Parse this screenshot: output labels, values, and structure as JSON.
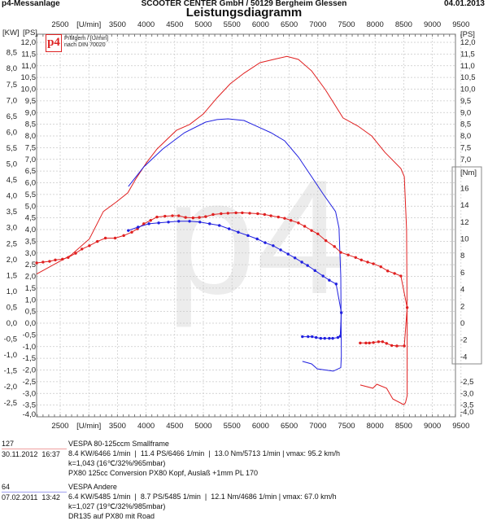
{
  "header": {
    "left": "p4-Messanlage",
    "center": "SCOOTER CENTER GmbH / 50129 Bergheim Glessen",
    "date": "04.01.2013",
    "title": "Leistungsdiagramm"
  },
  "logo": {
    "mark": "p4",
    "line1": "P/Mgem / [U/min]",
    "line2": "nach DIN 70020",
    "watermark": "p4"
  },
  "colors": {
    "run1": "#e02020",
    "run2": "#2020e0",
    "grid": "#c8c8c8"
  },
  "chart_data": {
    "type": "line",
    "xlabel": "[U/min]",
    "xlim": [
      2100,
      9500
    ],
    "x_ticks": [
      "2500",
      "[U/min]",
      "3500",
      "4000",
      "4500",
      "5000",
      "5500",
      "6000",
      "6500",
      "7000",
      "7500",
      "8000",
      "8500",
      "9000",
      "9500"
    ],
    "y_left_units": [
      "[KW]",
      "[PS]"
    ],
    "y_right_units": [
      "[PS]",
      "[Nm]"
    ],
    "ps_ticks": [
      "12,0",
      "11,5",
      "11,0",
      "10,5",
      "10,0",
      "9,5",
      "9,0",
      "8,5",
      "8,0",
      "7,5",
      "7,0",
      "6,5",
      "6,0",
      "5,5",
      "5,0",
      "4,5",
      "4,0",
      "3,5",
      "3,0",
      "2,5",
      "2,0",
      "1,5",
      "1,0",
      "0,5",
      "0,0",
      "-0,5",
      "-1,0",
      "-1,5",
      "-2,0",
      "-2,5",
      "-3,0",
      "-3,5",
      "-4,0"
    ],
    "kw_ticks": [
      "8,5",
      "8,0",
      "7,5",
      "7,0",
      "6,5",
      "6,0",
      "5,5",
      "5,0",
      "4,5",
      "4,0",
      "3,5",
      "3,0",
      "2,5",
      "2,0",
      "1,5",
      "1,0",
      "0,5",
      "0,0",
      "-0,5",
      "-1,0",
      "-1,5",
      "-2,0",
      "-2,5"
    ],
    "right_ps_upper_ticks": [
      "12,0",
      "11,5",
      "11,0",
      "10,5",
      "10,0",
      "9,5",
      "9,0",
      "8,5",
      "8,0",
      "7,5",
      "7,0"
    ],
    "right_nm_ticks": [
      "16",
      "14",
      "12",
      "10",
      "8",
      "6",
      "4",
      "2",
      "0",
      "-2",
      "-4"
    ],
    "right_ps_lower_ticks": [
      "-2,5",
      "-3,0",
      "-3,5",
      "-4,0"
    ],
    "ylim_ps": [
      -4.0,
      12.0
    ],
    "ylim_nm": [
      -4,
      16
    ],
    "grid": true,
    "series": [
      {
        "run": "127",
        "quantity": "PS",
        "color": "#e02020",
        "markers": false,
        "x": [
          2090,
          2685,
          3010,
          3253,
          3480,
          3680,
          3820,
          4006,
          4190,
          4530,
          4760,
          5000,
          5240,
          5470,
          5710,
          5990,
          6280,
          6460,
          6660,
          6890,
          7130,
          7440,
          7700,
          7940,
          8170,
          8450,
          8510,
          8550,
          8560,
          8560,
          8530,
          8500,
          8310,
          8200,
          8030,
          7960,
          7740
        ],
        "y": [
          2.1,
          2.9,
          3.6,
          4.77,
          5.18,
          5.57,
          6.16,
          6.85,
          7.44,
          8.24,
          8.49,
          8.94,
          9.63,
          10.23,
          10.68,
          11.13,
          11.3,
          11.4,
          11.27,
          10.78,
          9.98,
          8.77,
          8.42,
          8.0,
          7.3,
          6.61,
          6.26,
          4.0,
          0.0,
          -3.1,
          -3.4,
          -3.48,
          -3.24,
          -2.78,
          -2.61,
          -2.78,
          -2.64
        ]
      },
      {
        "run": "64",
        "quantity": "PS",
        "color": "#2020e0",
        "markers": false,
        "x": [
          3690,
          3960,
          4290,
          4670,
          5040,
          5240,
          5430,
          5710,
          5990,
          6180,
          6420,
          6660,
          6890,
          7090,
          7310,
          7370,
          7400,
          7410,
          7400,
          7270,
          6990,
          6890,
          6730
        ],
        "y": [
          5.84,
          6.68,
          7.44,
          8.14,
          8.59,
          8.7,
          8.73,
          8.66,
          8.35,
          8.14,
          7.79,
          7.1,
          6.26,
          5.53,
          4.77,
          4.07,
          2.0,
          -1.4,
          -1.9,
          -2.05,
          -1.95,
          -1.74,
          -1.63
        ]
      },
      {
        "run": "127",
        "quantity": "Nm",
        "color": "#e02020",
        "markers": true,
        "x": [
          2090,
          2200,
          2315,
          2415,
          2540,
          2640,
          2770,
          2880,
          3010,
          3150,
          3290,
          3460,
          3610,
          3750,
          3850,
          3960,
          4080,
          4190,
          4330,
          4460,
          4570,
          4690,
          4820,
          4930,
          5040,
          5170,
          5310,
          5430,
          5570,
          5680,
          5810,
          5950,
          6070,
          6180,
          6310,
          6420,
          6530,
          6660,
          6770,
          6890,
          7000,
          7140,
          7290,
          7400,
          7530,
          7660,
          7760,
          7870,
          7970,
          8100,
          8220,
          8340,
          8450,
          8560,
          8510,
          8380,
          8290,
          8200,
          8130,
          8060,
          7970,
          7900,
          7840,
          7740
        ],
        "y": [
          7.15,
          7.25,
          7.34,
          7.5,
          7.6,
          7.8,
          8.3,
          8.8,
          9.2,
          9.7,
          10.1,
          10.1,
          10.4,
          10.8,
          11.2,
          11.8,
          12.2,
          12.6,
          12.7,
          12.75,
          12.75,
          12.55,
          12.5,
          12.55,
          12.65,
          12.9,
          13.0,
          13.05,
          13.1,
          13.1,
          13.05,
          13.0,
          12.9,
          12.75,
          12.6,
          12.45,
          12.2,
          11.9,
          11.5,
          11.0,
          10.6,
          9.8,
          9.1,
          8.4,
          8.1,
          7.8,
          7.5,
          7.25,
          7.05,
          6.7,
          6.2,
          5.9,
          5.6,
          1.85,
          -2.7,
          -2.7,
          -2.65,
          -2.4,
          -2.2,
          -2.2,
          -2.3,
          -2.35,
          -2.35,
          -2.35
        ]
      },
      {
        "run": "64",
        "quantity": "Nm",
        "color": "#2020e0",
        "markers": true,
        "x": [
          3690,
          3860,
          4050,
          4220,
          4390,
          4570,
          4760,
          4940,
          5110,
          5280,
          5450,
          5610,
          5780,
          5940,
          6080,
          6220,
          6350,
          6480,
          6600,
          6720,
          6820,
          6950,
          7090,
          7200,
          7320,
          7410,
          7390,
          7350,
          7260,
          7200,
          7120,
          7050,
          6970,
          6900,
          6830,
          6730
        ],
        "y": [
          11.0,
          11.4,
          11.8,
          11.9,
          12.0,
          12.1,
          12.1,
          12.0,
          11.8,
          11.6,
          11.2,
          10.8,
          10.4,
          10.0,
          9.55,
          9.2,
          8.7,
          8.2,
          7.75,
          7.25,
          6.85,
          6.25,
          5.6,
          5.1,
          4.65,
          1.25,
          -1.55,
          -1.7,
          -1.8,
          -1.8,
          -1.8,
          -1.8,
          -1.7,
          -1.6,
          -1.6,
          -1.6
        ]
      }
    ]
  },
  "runs": [
    {
      "id": "127",
      "datetime": "30.11.2012  16:37",
      "name": "VESPA 80-125ccm Smallframe",
      "stats": "8.4 KW/6466 1/min  |  11.4 PS/6466 1/min  |  13.0 Nm/5713 1/min | vmax: 95.2 km/h",
      "conditions": "k=1,043 (16℃/32%/965mbar)",
      "note": "PX80 125cc Conversion PX80 Kopf, Auslaß +1mm PL 170"
    },
    {
      "id": "64",
      "datetime": "07.02.2011  13:42",
      "name": "VESPA Andere",
      "stats": "6.4 KW/5485 1/min  |  8.7 PS/5485 1/min  |  12.1 Nm/4686 1/min | vmax: 67.0 km/h",
      "conditions": "k=1,027 (19℃/32%/985mbar)",
      "note": "DR135 auf PX80 mit Road"
    }
  ]
}
